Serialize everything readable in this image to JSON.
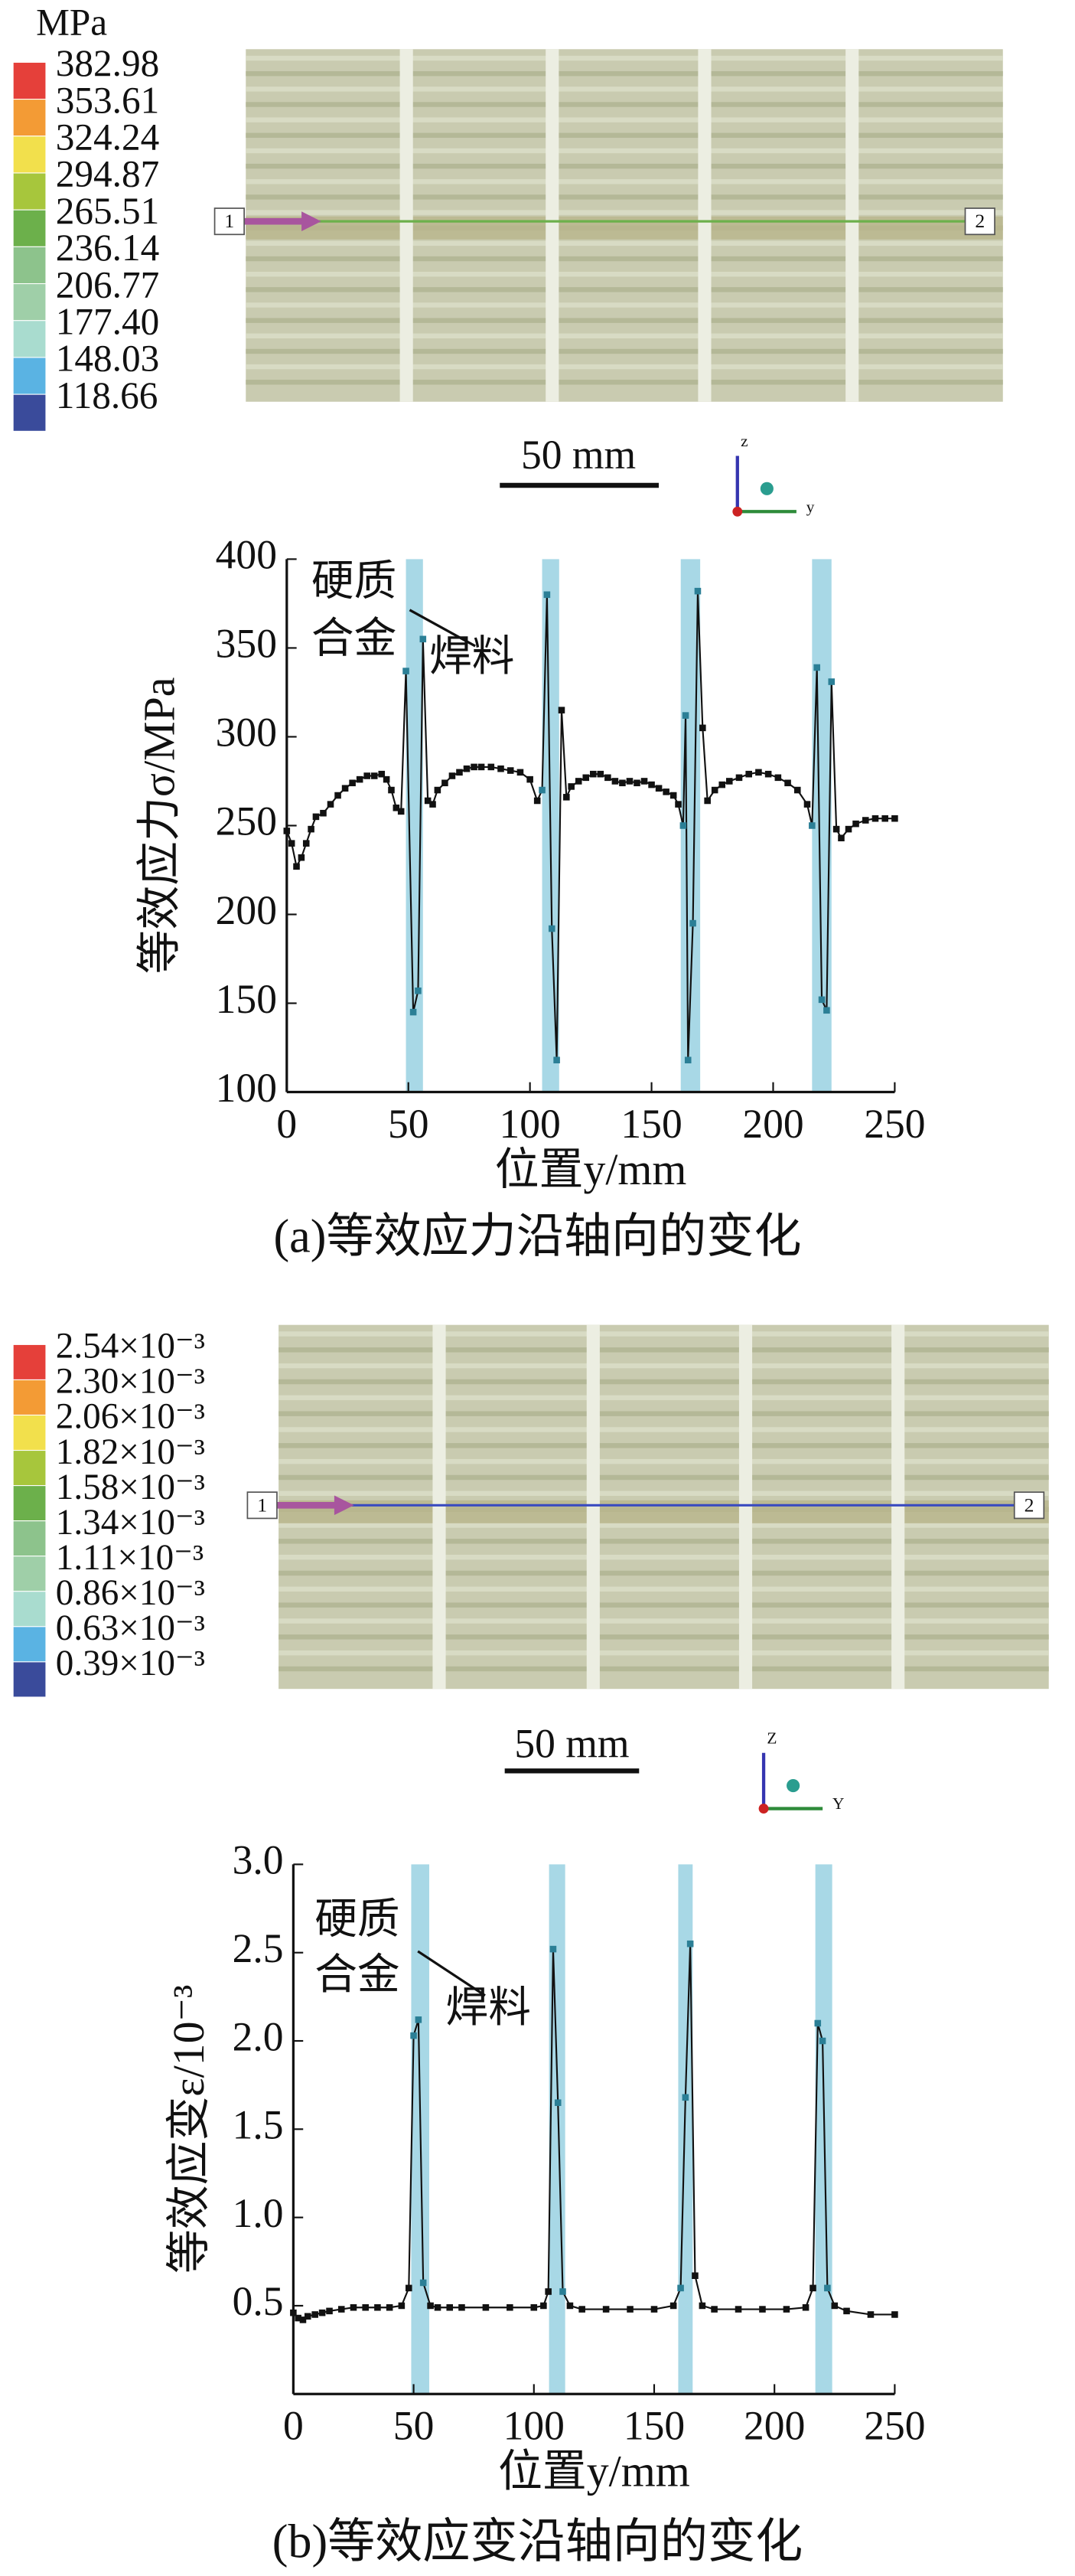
{
  "chart_data": [
    {
      "type": "line",
      "x": [
        0,
        2,
        4,
        6,
        8,
        10,
        12,
        15,
        18,
        21,
        24,
        27,
        30,
        33,
        36,
        39,
        41,
        43,
        45,
        47,
        49,
        52,
        54,
        56,
        58,
        60,
        62,
        65,
        68,
        71,
        74,
        77,
        80,
        84,
        88,
        92,
        96,
        100,
        103,
        105,
        107,
        109,
        111,
        113,
        115,
        117,
        120,
        123,
        126,
        129,
        132,
        135,
        138,
        141,
        144,
        147,
        150,
        153,
        156,
        159,
        161,
        163,
        164,
        165,
        167,
        169,
        171,
        173,
        176,
        179,
        182,
        186,
        190,
        194,
        198,
        202,
        206,
        210,
        214,
        216,
        218,
        220,
        222,
        224,
        226,
        228,
        231,
        234,
        238,
        242,
        246,
        250
      ],
      "series": [
        {
          "color": "#111111",
          "values": [
            247,
            240,
            227,
            232,
            240,
            248,
            255,
            257,
            262,
            267,
            271,
            274,
            276,
            278,
            278,
            279,
            276,
            270,
            260,
            258,
            337,
            145,
            157,
            355,
            264,
            262,
            270,
            274,
            278,
            280,
            282,
            283,
            283,
            283,
            282,
            281,
            280,
            276,
            264,
            270,
            380,
            192,
            118,
            315,
            266,
            272,
            275,
            277,
            279,
            279,
            277,
            275,
            274,
            275,
            274,
            275,
            273,
            271,
            269,
            267,
            262,
            250,
            312,
            118,
            195,
            382,
            305,
            264,
            270,
            273,
            275,
            277,
            279,
            280,
            279,
            277,
            274,
            270,
            262,
            250,
            339,
            152,
            146,
            331,
            248,
            243,
            248,
            251,
            253,
            254,
            254,
            254
          ]
        }
      ],
      "bands": [
        [
          49,
          56
        ],
        [
          105,
          112
        ],
        [
          162,
          170
        ],
        [
          216,
          224
        ]
      ],
      "band_color": "#a8d8e6",
      "highlight_color": "#2b7f96",
      "xlim": [
        0,
        250
      ],
      "xticks": [
        0,
        50,
        100,
        150,
        200,
        250
      ],
      "ylim": [
        100,
        400
      ],
      "yticks": [
        100,
        150,
        200,
        250,
        300,
        350,
        400
      ],
      "xlabel": "位置y/mm",
      "ylabel": "等效应力σ/MPa",
      "annotations": [
        "硬质",
        "合金",
        "焊料"
      ]
    },
    {
      "type": "line",
      "x": [
        0,
        2,
        4,
        6,
        9,
        12,
        15,
        20,
        25,
        30,
        35,
        40,
        45,
        48,
        50,
        52,
        54,
        57,
        60,
        65,
        70,
        80,
        90,
        100,
        104,
        106,
        108,
        110,
        112,
        115,
        120,
        130,
        140,
        150,
        158,
        161,
        163,
        165,
        167,
        170,
        175,
        185,
        195,
        205,
        213,
        216,
        218,
        220,
        222,
        225,
        230,
        240,
        250
      ],
      "series": [
        {
          "color": "#111111",
          "values": [
            0.46,
            0.43,
            0.42,
            0.44,
            0.45,
            0.46,
            0.47,
            0.48,
            0.49,
            0.49,
            0.49,
            0.49,
            0.5,
            0.6,
            2.03,
            2.12,
            0.63,
            0.5,
            0.49,
            0.49,
            0.49,
            0.49,
            0.49,
            0.49,
            0.5,
            0.58,
            2.52,
            1.65,
            0.58,
            0.5,
            0.48,
            0.48,
            0.48,
            0.48,
            0.5,
            0.6,
            1.68,
            2.55,
            0.67,
            0.5,
            0.48,
            0.48,
            0.48,
            0.48,
            0.49,
            0.6,
            2.1,
            2.0,
            0.6,
            0.5,
            0.47,
            0.45,
            0.45
          ]
        }
      ],
      "bands": [
        [
          49,
          56.5
        ],
        [
          106.3,
          113
        ],
        [
          160,
          166
        ],
        [
          217,
          224
        ]
      ],
      "band_color": "#a8d8e6",
      "highlight_color": "#2b7f96",
      "xlim": [
        0,
        250
      ],
      "xticks": [
        0,
        50,
        100,
        150,
        200,
        250
      ],
      "ylim": [
        0,
        3.0
      ],
      "yticks": [
        0.5,
        {
          "value": 1.0,
          "label": "1.0"
        },
        1.5,
        {
          "value": 2.0,
          "label": "2.0"
        },
        2.5,
        {
          "value": 3.0,
          "label": "3.0"
        }
      ],
      "xlabel": "位置y/mm",
      "ylabel": "等效应变ε/10⁻³",
      "annotations": [
        "硬质",
        "合金",
        "焊料"
      ]
    }
  ],
  "panels": [
    {
      "colorbar_unit": "MPa",
      "colorbar_labels": [
        "382.98",
        "353.61",
        "324.24",
        "294.87",
        "265.51",
        "236.14",
        "206.77",
        "177.40",
        "148.03",
        "118.66"
      ],
      "colorbar_colors": [
        "#e5403a",
        "#f39b35",
        "#f2e04c",
        "#a7c63c",
        "#6cb04b",
        "#8dc38c",
        "#9fcfa8",
        "#a9dccf",
        "#5ab3e3",
        "#3a4b9b"
      ],
      "node_labels": [
        "1",
        "2"
      ],
      "triad_labels": [
        "z",
        "y"
      ],
      "scale_bar": "50 mm",
      "caption": "(a)等效应力沿轴向的变化"
    },
    {
      "colorbar_labels": [
        "2.54×10⁻³",
        "2.30×10⁻³",
        "2.06×10⁻³",
        "1.82×10⁻³",
        "1.58×10⁻³",
        "1.34×10⁻³",
        "1.11×10⁻³",
        "0.86×10⁻³",
        "0.63×10⁻³",
        "0.39×10⁻³"
      ],
      "colorbar_colors": [
        "#e5403a",
        "#f39b35",
        "#f2e04c",
        "#a7c63c",
        "#6cb04b",
        "#8dc38c",
        "#9fcfa8",
        "#a9dccf",
        "#5ab3e3",
        "#3a4b9b"
      ],
      "node_labels": [
        "1",
        "2"
      ],
      "triad_labels": [
        "Z",
        "Y"
      ],
      "scale_bar": "50 mm",
      "caption": "(b)等效应变沿轴向的变化"
    }
  ]
}
